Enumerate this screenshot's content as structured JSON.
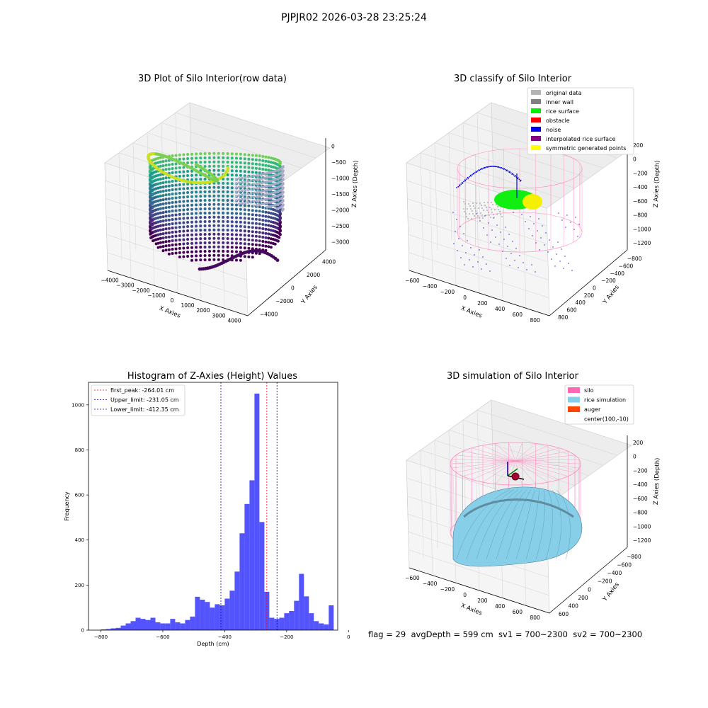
{
  "suptitle": "PJPJR02 2026-03-28 23:25:24",
  "footer": "flag = 29  avgDepth = 599 cm  sv1 = 700~2300  sv2 = 700~2300",
  "colors": {
    "hist_bar": "#4b4bff",
    "first_peak": "#ff0000",
    "limit": "#0000cc",
    "silo_wire": "#ff88c0",
    "rice_sim": "#87cee8"
  },
  "chart_data": [
    {
      "type": "scatter3d",
      "title": "3D Plot of Silo Interior(row data)",
      "xlabel": "X Axies",
      "ylabel": "Y Axies",
      "zlabel": "Z Axies (Depth)",
      "xticks": [
        "−4000",
        "−3000",
        "−2000",
        "−1000",
        "0",
        "1000",
        "2000",
        "3000",
        "4000"
      ],
      "yticks": [
        "−4000",
        "−2000",
        "0",
        "2000",
        "4000"
      ],
      "zticks": [
        "0",
        "−500",
        "−1000",
        "−1500",
        "−2000",
        "−2500",
        "−3000"
      ],
      "colormap": "viridis"
    },
    {
      "type": "scatter3d",
      "title": "3D classify of Silo Interior",
      "xlabel": "X Axies",
      "ylabel": "Y Axies",
      "zlabel": "Z Axies (Depth)",
      "xticks": [
        "−600",
        "−400",
        "−200",
        "0",
        "200",
        "400",
        "600",
        "800"
      ],
      "yticks": [
        "800",
        "600",
        "400",
        "200",
        "0",
        "−200",
        "−400",
        "−600",
        "−800"
      ],
      "zticks": [
        "200",
        "0",
        "−200",
        "−400",
        "−600",
        "−800",
        "−1000",
        "−1200"
      ],
      "legend_position": "top-right",
      "legend": [
        {
          "label": "original data",
          "color": "#b4b4b4"
        },
        {
          "label": "inner wall",
          "color": "#808080"
        },
        {
          "label": "rice surface",
          "color": "#00ee00"
        },
        {
          "label": "obstacle",
          "color": "#ff0000"
        },
        {
          "label": "noise",
          "color": "#0000ee"
        },
        {
          "label": "interpolated rice surface",
          "color": "#800080"
        },
        {
          "label": "symmetric generated points",
          "color": "#ffff00"
        }
      ]
    },
    {
      "type": "bar",
      "title": "Histogram of Z-Axies (Height) Values",
      "xlabel": "Depth (cm)",
      "ylabel": "Frequency",
      "xlim": [
        -840,
        -35
      ],
      "ylim": [
        0,
        1100
      ],
      "xticks": [
        -800,
        -600,
        -400,
        -200,
        0
      ],
      "yticks": [
        0,
        200,
        400,
        600,
        800,
        1000
      ],
      "bin_width": 16,
      "bin_start": -800,
      "values": [
        3,
        5,
        8,
        10,
        20,
        30,
        40,
        55,
        50,
        45,
        55,
        35,
        30,
        30,
        50,
        35,
        30,
        45,
        60,
        148,
        135,
        125,
        100,
        115,
        110,
        140,
        175,
        260,
        430,
        560,
        665,
        1050,
        480,
        170,
        55,
        50,
        55,
        75,
        85,
        130,
        250,
        150,
        75,
        40,
        30,
        25,
        110
      ],
      "legend_position": "top-left",
      "vlines": [
        {
          "label": "first_peak: -264.01 cm",
          "x": -264.01,
          "color": "#ff0000"
        },
        {
          "label": "Upper_limit: -231.05 cm",
          "x": -231.05,
          "color": "#0000cc"
        },
        {
          "label": "Lower_limit: -412.35 cm",
          "x": -412.35,
          "color": "#0000cc"
        }
      ]
    },
    {
      "type": "surface3d",
      "title": "3D simulation of Silo Interior",
      "xlabel": "X Axies",
      "ylabel": "Y Axies",
      "zlabel": "Z Axies (Depth)",
      "xticks": [
        "−600",
        "−400",
        "−200",
        "0",
        "200",
        "400",
        "600",
        "800"
      ],
      "yticks": [
        "600",
        "400",
        "200",
        "0",
        "−200",
        "−400",
        "−600",
        "−800"
      ],
      "zticks": [
        "200",
        "0",
        "−200",
        "−400",
        "−600",
        "−800",
        "−1000",
        "−1200"
      ],
      "legend_position": "top-right",
      "legend": [
        {
          "label": "silo",
          "color": "#ff69b4"
        },
        {
          "label": "rice simulation",
          "color": "#87ceeb"
        },
        {
          "label": "auger",
          "color": "#ff4500"
        },
        {
          "label": "center(100,-10)",
          "color": ""
        }
      ]
    }
  ]
}
